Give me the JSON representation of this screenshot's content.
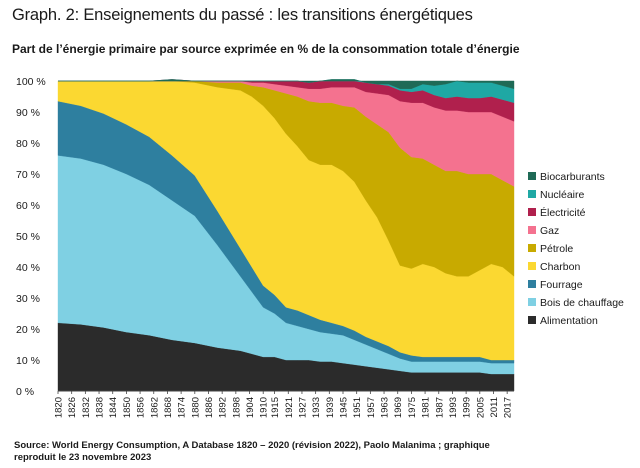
{
  "title": "Graph. 2: Enseignements du passé : les transitions énergétiques",
  "subtitle": "Part de l’énergie primaire par source exprimée en % de la consommation totale d’énergie",
  "source_line1": "Source: World Energy Consumption, A Database 1820 – 2020 (révision 2022), Paolo Malanima ; graphique",
  "source_line2": "reproduit le 23 novembre 2023",
  "chart_data": {
    "type": "area",
    "stacked": true,
    "x": [
      1820,
      1830,
      1840,
      1850,
      1860,
      1870,
      1880,
      1890,
      1900,
      1905,
      1910,
      1915,
      1920,
      1925,
      1930,
      1935,
      1940,
      1945,
      1950,
      1955,
      1960,
      1965,
      1970,
      1975,
      1980,
      1985,
      1990,
      1995,
      2000,
      2005,
      2010,
      2015,
      2020
    ],
    "y_ticks": [
      "0 %",
      "10 %",
      "20 %",
      "30 %",
      "40 %",
      "50 %",
      "60 %",
      "70 %",
      "80 %",
      "90 %",
      "100 %"
    ],
    "x_ticks": [
      "1820",
      "1826",
      "1832",
      "1838",
      "1844",
      "1850",
      "1856",
      "1862",
      "1868",
      "1874",
      "1880",
      "1886",
      "1892",
      "1898",
      "1904",
      "1910",
      "1915",
      "1921",
      "1927",
      "1933",
      "1939",
      "1945",
      "1951",
      "1957",
      "1963",
      "1969",
      "1975",
      "1981",
      "1987",
      "1993",
      "1999",
      "2005",
      "2011",
      "2017"
    ],
    "ylim": [
      0,
      100
    ],
    "legend_position": "right",
    "series": [
      {
        "name": "Alimentation",
        "color": "#2b2b2b",
        "values": [
          22,
          21.5,
          20.5,
          19,
          18,
          16.5,
          15.5,
          14,
          13,
          12,
          11,
          11,
          10,
          10,
          10,
          9.5,
          9.5,
          9,
          8.5,
          8,
          7.5,
          7,
          6.5,
          6,
          6,
          6,
          6,
          6,
          6,
          6,
          5.5,
          5.5,
          5.5
        ]
      },
      {
        "name": "Bois de chauffage",
        "color": "#7fd0e3",
        "values": [
          54,
          53.5,
          52.5,
          51,
          48.5,
          45,
          41,
          33,
          24,
          20,
          16,
          14,
          12,
          11,
          10,
          9.5,
          9,
          9,
          8,
          7,
          6,
          5,
          4,
          3.5,
          3.5,
          3.5,
          3.5,
          3.5,
          3.5,
          3.5,
          3.5,
          3.5,
          3.5
        ]
      },
      {
        "name": "Fourrage",
        "color": "#2e7f9f",
        "values": [
          17.5,
          17,
          16.5,
          16,
          15.5,
          14.5,
          13,
          11,
          9,
          8,
          7,
          6,
          5,
          5,
          4.5,
          4,
          3.5,
          3,
          3,
          2.5,
          2.5,
          2.5,
          2,
          2,
          1.5,
          1.5,
          1.5,
          1.5,
          1.5,
          1.5,
          1,
          1,
          1
        ]
      },
      {
        "name": "Charbon",
        "color": "#fbd831",
        "values": [
          6.5,
          8,
          10.5,
          14,
          18,
          24,
          30,
          40,
          51,
          55,
          58,
          57,
          56,
          53,
          50,
          50,
          51,
          50,
          48,
          44,
          40,
          34,
          28,
          28,
          30,
          29,
          27,
          26,
          26,
          28,
          31,
          30,
          27
        ]
      },
      {
        "name": "Pétrole",
        "color": "#c8aa00",
        "values": [
          0,
          0,
          0,
          0,
          0,
          0.5,
          0.5,
          1.5,
          2.5,
          3.5,
          6,
          9,
          13,
          16,
          19,
          20,
          20,
          21,
          24,
          27,
          30,
          35,
          38,
          36,
          34,
          33,
          33,
          34,
          33,
          31,
          29,
          28,
          29
        ]
      },
      {
        "name": "Gaz",
        "color": "#f4728f",
        "values": [
          0,
          0,
          0,
          0,
          0,
          0,
          0,
          0.5,
          0.5,
          1,
          1.5,
          2,
          2.5,
          3,
          4,
          4.5,
          5,
          6,
          6.5,
          8,
          10,
          12,
          15,
          17.5,
          18,
          18.5,
          19.5,
          19.5,
          20,
          20,
          20,
          20.5,
          21
        ]
      },
      {
        "name": "Électricité",
        "color": "#b0204d",
        "values": [
          0,
          0,
          0,
          0,
          0,
          0,
          0,
          0,
          0,
          0.5,
          0.5,
          1,
          1.5,
          2,
          2,
          2.5,
          2.5,
          2.5,
          2.5,
          3,
          3,
          3,
          3.5,
          3.5,
          4,
          4,
          4,
          4.5,
          4.5,
          4.5,
          5,
          5.5,
          6
        ]
      },
      {
        "name": "Nucléaire",
        "color": "#1fa8a4",
        "values": [
          0,
          0,
          0,
          0,
          0,
          0,
          0,
          0,
          0,
          0,
          0,
          0,
          0,
          0,
          0,
          0,
          0,
          0,
          0,
          0,
          0,
          0.5,
          0.5,
          1,
          2,
          3,
          4.5,
          5,
          5,
          5,
          4.5,
          4.5,
          4.5
        ]
      },
      {
        "name": "Biocarburants",
        "color": "#1f6a56",
        "values": [
          0,
          0,
          0,
          0,
          0,
          0,
          0,
          0,
          0,
          0,
          0,
          0,
          0,
          0,
          0,
          0,
          0,
          0,
          0,
          0,
          0,
          0,
          0,
          0,
          0,
          0,
          0,
          0,
          0.5,
          0.5,
          0.5,
          0.5,
          0.5
        ]
      }
    ]
  }
}
